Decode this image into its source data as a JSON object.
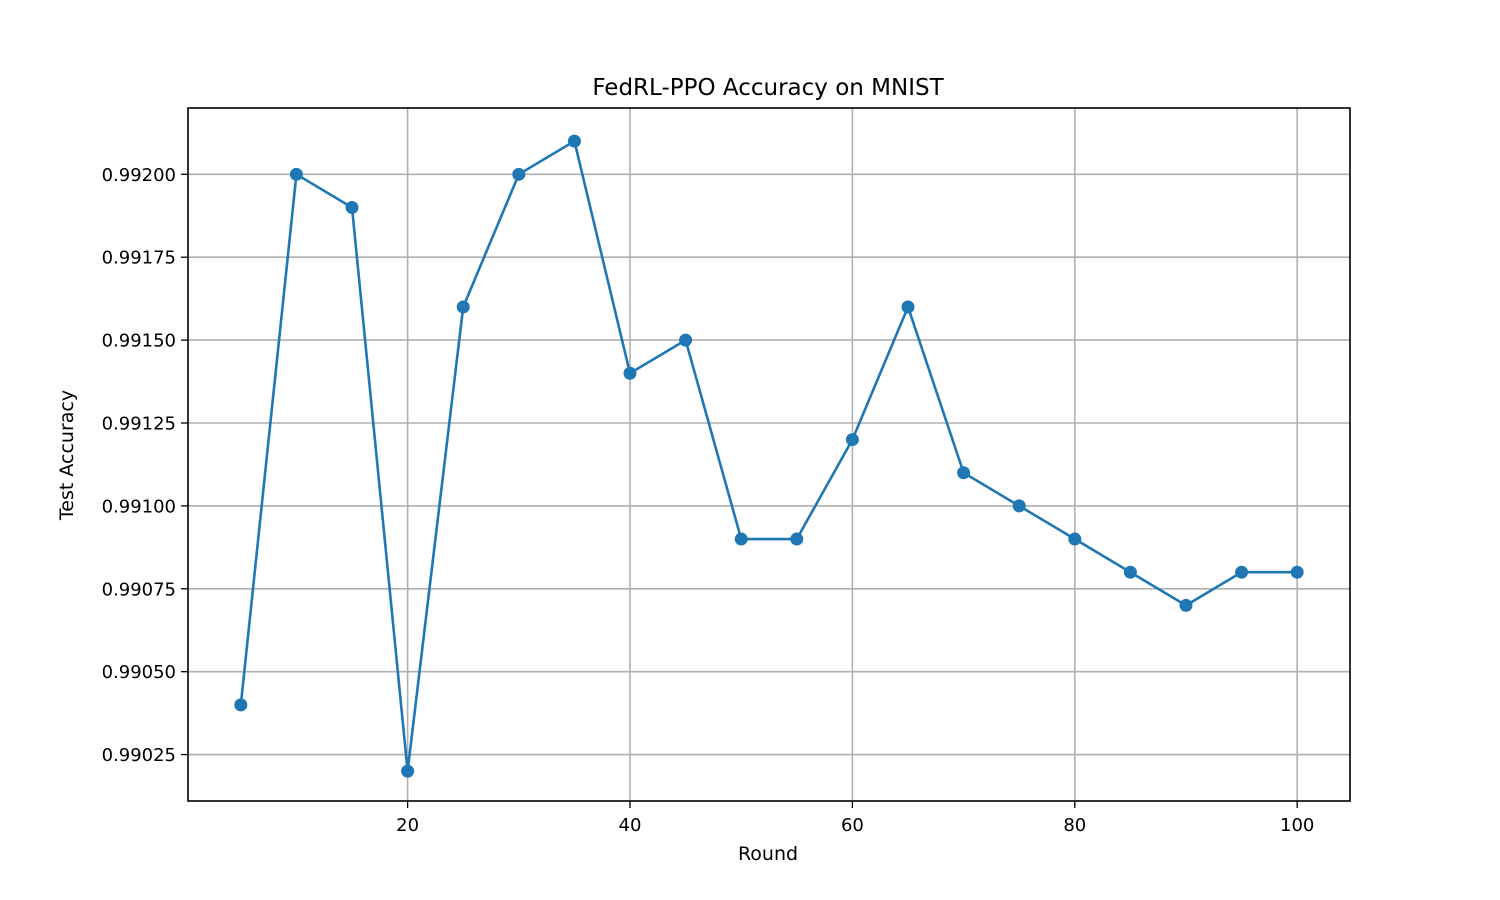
{
  "chart_data": {
    "type": "line",
    "title": "FedRL-PPO Accuracy on MNIST",
    "xlabel": "Round",
    "ylabel": "Test Accuracy",
    "xlim": [
      0.25,
      104.75
    ],
    "ylim": [
      0.99011,
      0.9922
    ],
    "xticks": [
      20,
      40,
      60,
      80,
      100
    ],
    "xtick_labels": [
      "20",
      "40",
      "60",
      "80",
      "100"
    ],
    "yticks": [
      0.99025,
      0.9905,
      0.99075,
      0.991,
      0.99125,
      0.9915,
      0.99175,
      0.992
    ],
    "ytick_labels": [
      "0.99025",
      "0.99050",
      "0.99075",
      "0.99100",
      "0.99125",
      "0.99150",
      "0.99175",
      "0.99200"
    ],
    "grid": true,
    "color": "#1f77b4",
    "marker": "circle",
    "series": [
      {
        "x": [
          5,
          10,
          15,
          20,
          25,
          30,
          35,
          40,
          45,
          50,
          55,
          60,
          65,
          70,
          75,
          80,
          85,
          90,
          95,
          100
        ],
        "y": [
          0.9904,
          0.992,
          0.9919,
          0.9902,
          0.9916,
          0.992,
          0.9921,
          0.9914,
          0.9915,
          0.9909,
          0.9909,
          0.9912,
          0.9916,
          0.9911,
          0.991,
          0.9909,
          0.9908,
          0.9907,
          0.9908,
          0.9908
        ]
      }
    ]
  }
}
